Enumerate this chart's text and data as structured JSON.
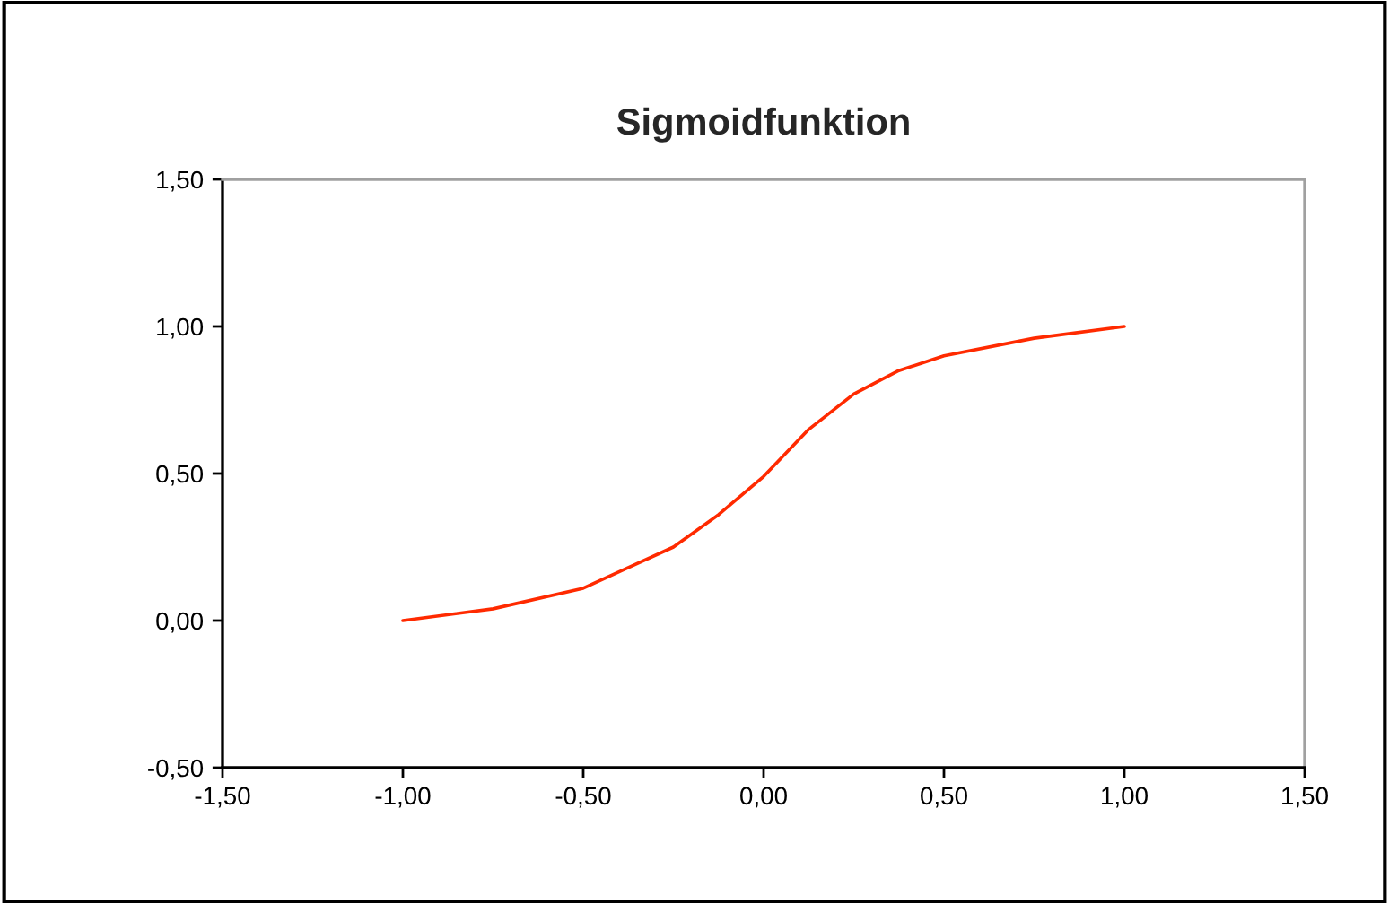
{
  "chart_data": {
    "type": "line",
    "title": "Sigmoidfunktion",
    "series": [
      {
        "color": "#ff2a00",
        "x": [
          -1.0,
          -0.75,
          -0.5,
          -0.375,
          -0.25,
          -0.125,
          0.0,
          0.125,
          0.25,
          0.375,
          0.5,
          0.75,
          1.0
        ],
        "values": [
          0.0,
          0.04,
          0.11,
          0.18,
          0.25,
          0.36,
          0.49,
          0.65,
          0.77,
          0.85,
          0.9,
          0.96,
          1.0
        ]
      }
    ],
    "xlim": [
      -1.5,
      1.5
    ],
    "ylim": [
      -0.5,
      1.5
    ],
    "xticks": [
      {
        "value": -1.5,
        "label": "-1,50"
      },
      {
        "value": -1.0,
        "label": "-1,00"
      },
      {
        "value": -0.5,
        "label": "-0,50"
      },
      {
        "value": 0.0,
        "label": "0,00"
      },
      {
        "value": 0.5,
        "label": "0,50"
      },
      {
        "value": 1.0,
        "label": "1,00"
      },
      {
        "value": 1.5,
        "label": "1,50"
      }
    ],
    "yticks": [
      {
        "value": -0.5,
        "label": "-0,50"
      },
      {
        "value": 0.0,
        "label": "0,00"
      },
      {
        "value": 0.5,
        "label": "0,50"
      },
      {
        "value": 1.0,
        "label": "1,00"
      },
      {
        "value": 1.5,
        "label": "1,50"
      }
    ],
    "grid": false,
    "legend": false,
    "marker": "none",
    "line_style": "solid"
  }
}
